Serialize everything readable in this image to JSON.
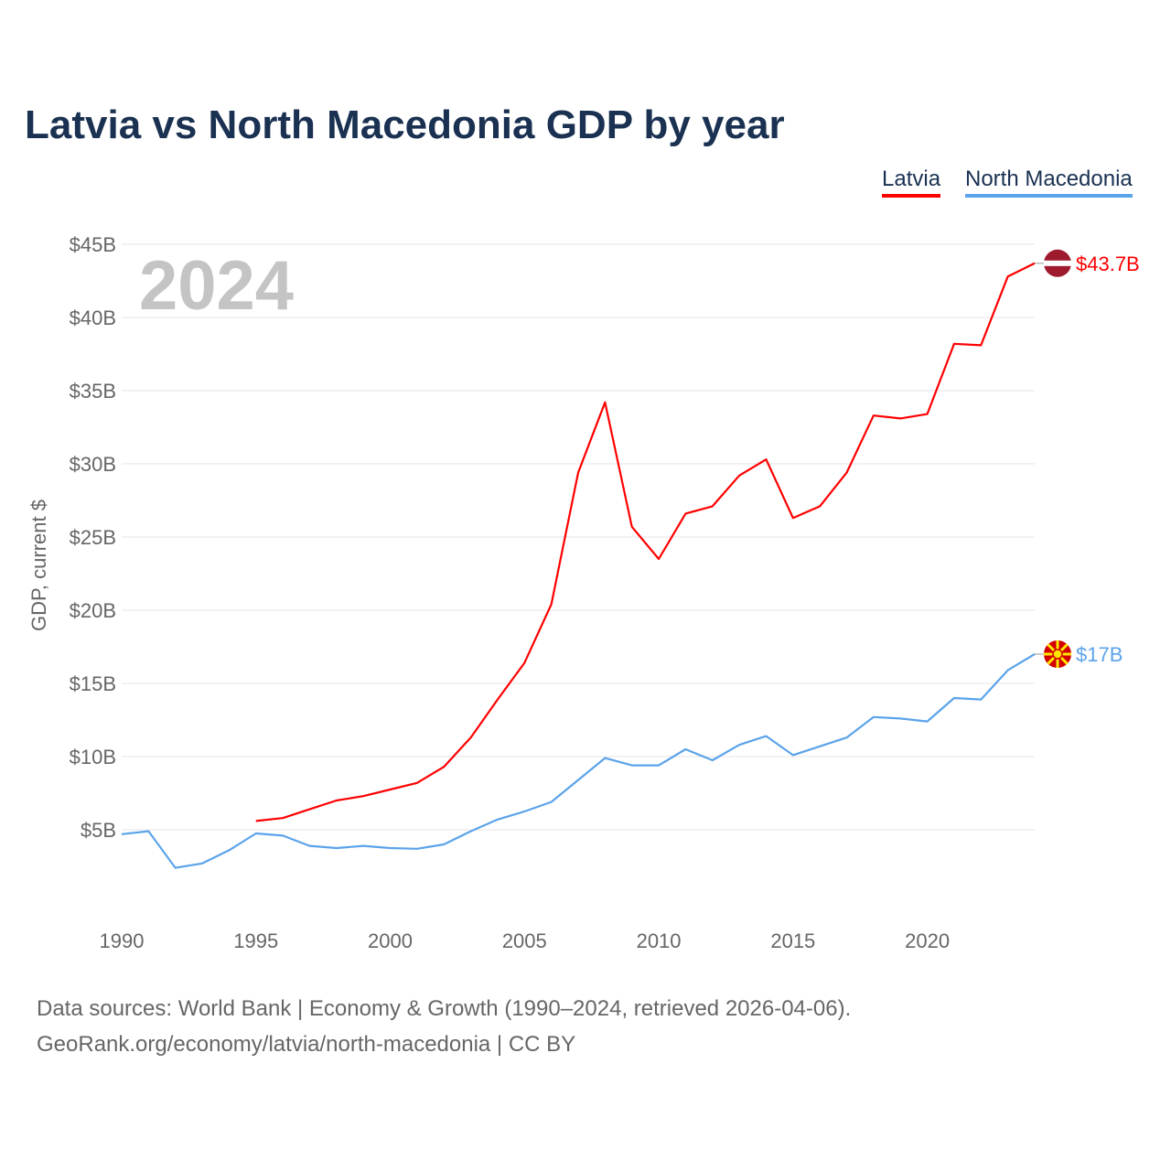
{
  "title": "Latvia vs North Macedonia GDP by year",
  "year_watermark": "2024",
  "footer": {
    "line1": "Data sources: World Bank | Economy & Growth (1990–2024, retrieved 2026-04-06).",
    "line2": "GeoRank.org/economy/latvia/north-macedonia | CC BY"
  },
  "chart_data": {
    "type": "line",
    "title": "Latvia vs North Macedonia GDP by year",
    "ylabel": "GDP, current $",
    "xlabel": "",
    "ylim": [
      0,
      45
    ],
    "xlim": [
      1990,
      2024
    ],
    "yticks": [
      {
        "v": 5,
        "label": "$5B"
      },
      {
        "v": 10,
        "label": "$10B"
      },
      {
        "v": 15,
        "label": "$15B"
      },
      {
        "v": 20,
        "label": "$20B"
      },
      {
        "v": 25,
        "label": "$25B"
      },
      {
        "v": 30,
        "label": "$30B"
      },
      {
        "v": 35,
        "label": "$35B"
      },
      {
        "v": 40,
        "label": "$40B"
      },
      {
        "v": 45,
        "label": "$45B"
      }
    ],
    "xticks": [
      1990,
      1995,
      2000,
      2005,
      2010,
      2015,
      2020
    ],
    "legend_placement": "top-right",
    "series": [
      {
        "name": "Latvia",
        "color": "#ff0000",
        "end_label": "$43.7B",
        "x_start": 1995,
        "values": [
          5.6,
          5.8,
          6.4,
          7.0,
          7.3,
          7.75,
          8.2,
          9.3,
          11.3,
          13.9,
          16.4,
          20.4,
          29.4,
          34.2,
          25.7,
          23.5,
          26.6,
          27.1,
          29.2,
          30.3,
          26.3,
          27.1,
          29.4,
          33.3,
          33.1,
          33.4,
          38.2,
          38.1,
          42.8,
          43.7
        ]
      },
      {
        "name": "North Macedonia",
        "color": "#5ba3ea",
        "end_label": "$17B",
        "x_start": 1990,
        "values": [
          4.7,
          4.9,
          2.4,
          2.7,
          3.6,
          4.75,
          4.6,
          3.9,
          3.75,
          3.9,
          3.75,
          3.7,
          4.0,
          4.9,
          5.7,
          6.25,
          6.9,
          8.4,
          9.9,
          9.4,
          9.4,
          10.5,
          9.75,
          10.8,
          11.4,
          10.1,
          10.7,
          11.3,
          12.7,
          12.6,
          12.4,
          14.0,
          13.9,
          15.9,
          17.0
        ]
      }
    ]
  }
}
